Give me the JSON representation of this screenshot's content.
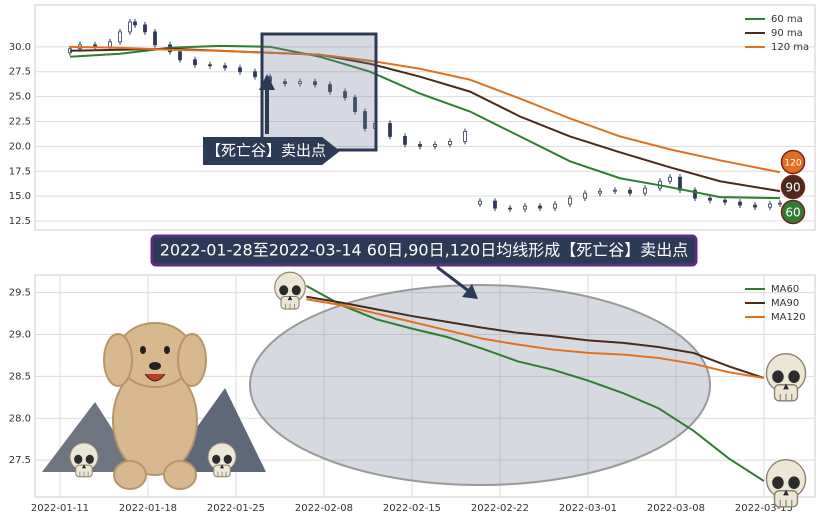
{
  "chart_data": [
    {
      "type": "candlestick",
      "x": [
        0,
        2,
        5,
        8,
        10,
        12,
        13,
        15,
        17,
        20,
        22,
        25,
        28,
        31,
        34,
        37,
        40,
        43,
        46,
        49,
        52,
        55,
        57,
        59,
        61,
        64,
        67,
        70,
        73,
        76,
        79,
        82,
        85,
        88,
        91,
        94,
        97,
        100,
        103,
        106,
        109,
        112,
        115,
        118,
        120,
        122,
        125,
        128,
        131,
        134,
        137,
        140,
        142
      ],
      "open": [
        29.4,
        29.8,
        30.2,
        30.0,
        30.5,
        31.5,
        32.5,
        32.2,
        31.5,
        30.2,
        29.5,
        28.7,
        28.2,
        28.1,
        27.9,
        27.5,
        27.0,
        26.5,
        26.3,
        26.5,
        26.2,
        25.5,
        24.9,
        23.5,
        21.8,
        22.3,
        21.0,
        20.2,
        20.0,
        20.2,
        20.5,
        14.2,
        14.5,
        13.8,
        13.7,
        14.0,
        13.8,
        14.2,
        14.8,
        15.3,
        15.5,
        15.6,
        15.3,
        15.8,
        16.5,
        16.9,
        15.6,
        14.8,
        14.6,
        14.4,
        14.1,
        13.9,
        14.2
      ],
      "high": [
        30.1,
        30.5,
        30.5,
        30.8,
        31.8,
        32.8,
        32.8,
        32.5,
        31.8,
        30.5,
        29.8,
        29.0,
        28.5,
        28.4,
        28.2,
        27.8,
        27.3,
        26.8,
        26.8,
        26.8,
        26.5,
        25.8,
        25.2,
        23.8,
        22.6,
        22.6,
        21.3,
        20.5,
        20.5,
        20.8,
        21.8,
        14.8,
        14.8,
        14.1,
        14.3,
        14.3,
        14.5,
        15.1,
        15.6,
        15.8,
        15.9,
        15.9,
        16.1,
        16.8,
        17.2,
        17.2,
        15.9,
        15.1,
        14.9,
        14.7,
        14.4,
        14.5,
        14.6
      ],
      "low": [
        29.1,
        29.5,
        29.7,
        29.7,
        30.2,
        31.2,
        31.9,
        31.2,
        29.9,
        29.2,
        28.4,
        27.9,
        27.8,
        27.6,
        27.2,
        26.7,
        26.2,
        26.0,
        26.0,
        25.9,
        25.2,
        24.6,
        23.2,
        21.5,
        21.5,
        20.7,
        19.9,
        19.7,
        19.7,
        19.9,
        20.2,
        13.9,
        13.5,
        13.4,
        13.4,
        13.5,
        13.5,
        13.9,
        14.5,
        15.0,
        15.2,
        15.0,
        15.0,
        15.5,
        16.2,
        15.3,
        14.5,
        14.3,
        14.1,
        13.8,
        13.6,
        13.6,
        13.9
      ],
      "close": [
        29.8,
        30.2,
        30.0,
        30.5,
        31.5,
        32.5,
        32.2,
        31.5,
        30.2,
        29.5,
        28.7,
        28.2,
        28.1,
        27.9,
        27.5,
        27.0,
        26.5,
        26.3,
        26.5,
        26.2,
        25.5,
        24.9,
        23.5,
        21.8,
        22.3,
        21.0,
        20.2,
        20.0,
        20.2,
        20.5,
        21.5,
        14.5,
        13.8,
        13.7,
        14.0,
        13.8,
        14.2,
        14.8,
        15.3,
        15.5,
        15.6,
        15.3,
        15.8,
        16.5,
        16.9,
        15.6,
        14.8,
        14.6,
        14.4,
        14.1,
        13.9,
        14.2,
        14.3
      ],
      "candle_color": "#2d3a55",
      "lines": {
        "x": [
          0,
          10,
          20,
          30,
          40,
          50,
          60,
          70,
          80,
          90,
          100,
          110,
          120,
          130,
          142
        ],
        "series": [
          {
            "name": "60 ma",
            "color": "#2e7d32",
            "badge": "60",
            "values": [
              29.0,
              29.3,
              29.9,
              30.1,
              30.0,
              29.0,
              27.5,
              25.3,
              23.5,
              21.0,
              18.5,
              16.8,
              15.9,
              14.9,
              14.8
            ]
          },
          {
            "name": "90 ma",
            "color": "#4a2a1a",
            "badge": "90",
            "values": [
              29.6,
              29.7,
              29.8,
              29.6,
              29.4,
              29.2,
              28.3,
              27.0,
              25.5,
              23.0,
              21.0,
              19.4,
              17.9,
              16.5,
              15.5
            ]
          },
          {
            "name": "120 ma",
            "color": "#e07020",
            "badge": "120",
            "values": [
              30.0,
              29.9,
              29.7,
              29.6,
              29.4,
              29.2,
              28.6,
              27.8,
              26.7,
              24.8,
              22.8,
              21.0,
              19.7,
              18.6,
              17.4
            ]
          }
        ]
      },
      "xlim": [
        -7,
        149
      ],
      "ylim": [
        11.6,
        34.2
      ],
      "yticks": [
        {
          "value": 12.5,
          "label": "12.5"
        },
        {
          "value": 15,
          "label": "15.0"
        },
        {
          "value": 17.5,
          "label": "17.5"
        },
        {
          "value": 20,
          "label": "20.0"
        },
        {
          "value": 22.5,
          "label": "22.5"
        },
        {
          "value": 25,
          "label": "25.0"
        },
        {
          "value": 27.5,
          "label": "27.5"
        },
        {
          "value": 30,
          "label": "30.0"
        }
      ],
      "grid": true,
      "legend": "upper right",
      "annotation": "【死亡谷】卖出点"
    },
    {
      "type": "line",
      "title": "2022-01-28至2022-03-14 60日,90日,120日均线形成【死亡谷】卖出点",
      "x": [
        14,
        16,
        18,
        20,
        22,
        24,
        26,
        28,
        30,
        32,
        34,
        36,
        38,
        40
      ],
      "series": [
        {
          "name": "MA60",
          "color": "#2e7d32",
          "values": [
            29.58,
            29.35,
            29.18,
            29.07,
            28.97,
            28.83,
            28.68,
            28.58,
            28.45,
            28.3,
            28.12,
            27.85,
            27.52,
            27.25
          ]
        },
        {
          "name": "MA90",
          "color": "#4a2a1a",
          "values": [
            29.45,
            29.38,
            29.3,
            29.22,
            29.15,
            29.08,
            29.02,
            28.98,
            28.93,
            28.9,
            28.85,
            28.78,
            28.62,
            28.48
          ]
        },
        {
          "name": "MA120",
          "color": "#e07020",
          "values": [
            29.42,
            29.35,
            29.25,
            29.15,
            29.05,
            28.95,
            28.88,
            28.82,
            28.78,
            28.76,
            28.72,
            28.65,
            28.55,
            28.48
          ]
        }
      ],
      "xlim": [
        -1.42,
        42.9
      ],
      "xticks": [
        {
          "value": 0,
          "label": "2022-01-11"
        },
        {
          "value": 5,
          "label": "2022-01-18"
        },
        {
          "value": 10,
          "label": "2022-01-25"
        },
        {
          "value": 15,
          "label": "2022-02-08"
        },
        {
          "value": 20,
          "label": "2022-02-15"
        },
        {
          "value": 25,
          "label": "2022-02-22"
        },
        {
          "value": 30,
          "label": "2022-03-01"
        },
        {
          "value": 35,
          "label": "2022-03-08"
        },
        {
          "value": 40,
          "label": "2022-03-15"
        }
      ],
      "ylim": [
        27.06,
        29.71
      ],
      "yticks": [
        {
          "value": 27.5,
          "label": "27.5"
        },
        {
          "value": 28,
          "label": "28.0"
        },
        {
          "value": 28.5,
          "label": "28.5"
        },
        {
          "value": 29,
          "label": "29.0"
        },
        {
          "value": 29.5,
          "label": "29.5"
        }
      ],
      "grid": true,
      "legend": "upper right"
    }
  ]
}
